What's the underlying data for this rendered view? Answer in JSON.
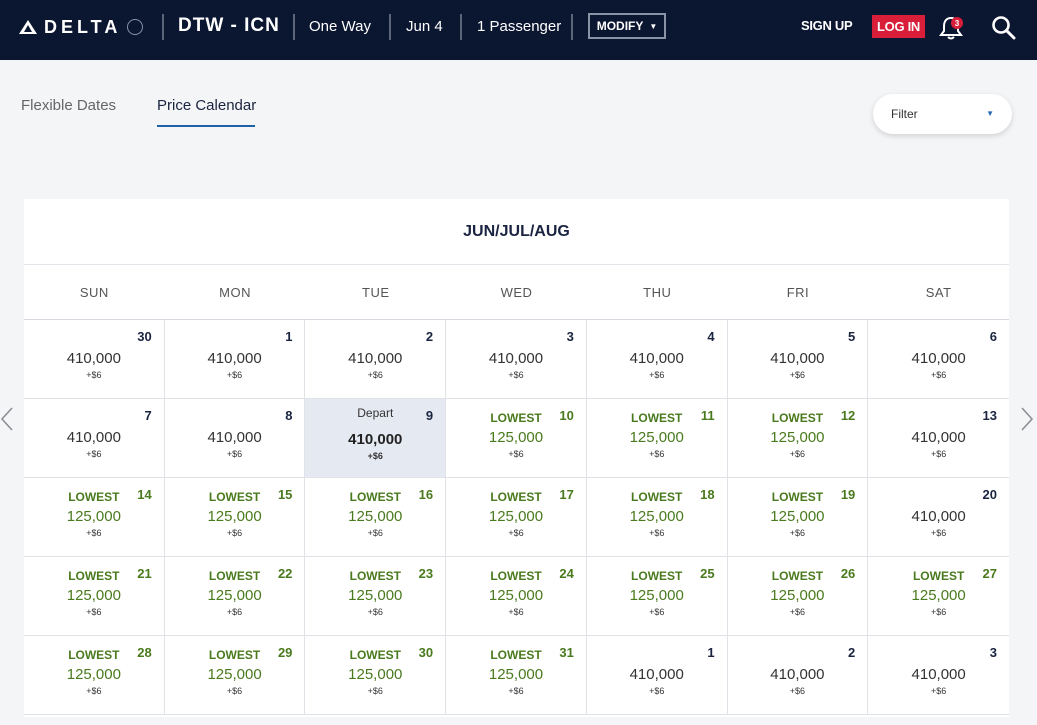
{
  "header": {
    "brand": "DELTA",
    "route": "DTW - ICN",
    "trip_type": "One Way",
    "date": "Jun 4",
    "passengers": "1 Passenger",
    "modify_label": "MODIFY",
    "signup_label": "SIGN UP",
    "login_label": "LOG IN",
    "notification_count": "3"
  },
  "tabs": {
    "flexible": "Flexible Dates",
    "price_calendar": "Price Calendar"
  },
  "filter": {
    "label": "Filter"
  },
  "calendar": {
    "title": "JUN/JUL/AUG",
    "weekdays": [
      "SUN",
      "MON",
      "TUE",
      "WED",
      "THU",
      "FRI",
      "SAT"
    ],
    "cells": [
      {
        "day": "30",
        "price": "410,000",
        "fee": "+$6",
        "tag": ""
      },
      {
        "day": "1",
        "price": "410,000",
        "fee": "+$6",
        "tag": ""
      },
      {
        "day": "2",
        "price": "410,000",
        "fee": "+$6",
        "tag": ""
      },
      {
        "day": "3",
        "price": "410,000",
        "fee": "+$6",
        "tag": ""
      },
      {
        "day": "4",
        "price": "410,000",
        "fee": "+$6",
        "tag": ""
      },
      {
        "day": "5",
        "price": "410,000",
        "fee": "+$6",
        "tag": ""
      },
      {
        "day": "6",
        "price": "410,000",
        "fee": "+$6",
        "tag": ""
      },
      {
        "day": "7",
        "price": "410,000",
        "fee": "+$6",
        "tag": ""
      },
      {
        "day": "8",
        "price": "410,000",
        "fee": "+$6",
        "tag": ""
      },
      {
        "day": "9",
        "price": "410,000",
        "fee": "+$6",
        "tag": "Depart",
        "type": "depart"
      },
      {
        "day": "10",
        "price": "125,000",
        "fee": "+$6",
        "tag": "LOWEST",
        "type": "lowest"
      },
      {
        "day": "11",
        "price": "125,000",
        "fee": "+$6",
        "tag": "LOWEST",
        "type": "lowest"
      },
      {
        "day": "12",
        "price": "125,000",
        "fee": "+$6",
        "tag": "LOWEST",
        "type": "lowest"
      },
      {
        "day": "13",
        "price": "410,000",
        "fee": "+$6",
        "tag": ""
      },
      {
        "day": "14",
        "price": "125,000",
        "fee": "+$6",
        "tag": "LOWEST",
        "type": "lowest"
      },
      {
        "day": "15",
        "price": "125,000",
        "fee": "+$6",
        "tag": "LOWEST",
        "type": "lowest"
      },
      {
        "day": "16",
        "price": "125,000",
        "fee": "+$6",
        "tag": "LOWEST",
        "type": "lowest"
      },
      {
        "day": "17",
        "price": "125,000",
        "fee": "+$6",
        "tag": "LOWEST",
        "type": "lowest"
      },
      {
        "day": "18",
        "price": "125,000",
        "fee": "+$6",
        "tag": "LOWEST",
        "type": "lowest"
      },
      {
        "day": "19",
        "price": "125,000",
        "fee": "+$6",
        "tag": "LOWEST",
        "type": "lowest"
      },
      {
        "day": "20",
        "price": "410,000",
        "fee": "+$6",
        "tag": ""
      },
      {
        "day": "21",
        "price": "125,000",
        "fee": "+$6",
        "tag": "LOWEST",
        "type": "lowest"
      },
      {
        "day": "22",
        "price": "125,000",
        "fee": "+$6",
        "tag": "LOWEST",
        "type": "lowest"
      },
      {
        "day": "23",
        "price": "125,000",
        "fee": "+$6",
        "tag": "LOWEST",
        "type": "lowest"
      },
      {
        "day": "24",
        "price": "125,000",
        "fee": "+$6",
        "tag": "LOWEST",
        "type": "lowest"
      },
      {
        "day": "25",
        "price": "125,000",
        "fee": "+$6",
        "tag": "LOWEST",
        "type": "lowest"
      },
      {
        "day": "26",
        "price": "125,000",
        "fee": "+$6",
        "tag": "LOWEST",
        "type": "lowest"
      },
      {
        "day": "27",
        "price": "125,000",
        "fee": "+$6",
        "tag": "LOWEST",
        "type": "lowest"
      },
      {
        "day": "28",
        "price": "125,000",
        "fee": "+$6",
        "tag": "LOWEST",
        "type": "lowest"
      },
      {
        "day": "29",
        "price": "125,000",
        "fee": "+$6",
        "tag": "LOWEST",
        "type": "lowest"
      },
      {
        "day": "30",
        "price": "125,000",
        "fee": "+$6",
        "tag": "LOWEST",
        "type": "lowest"
      },
      {
        "day": "31",
        "price": "125,000",
        "fee": "+$6",
        "tag": "LOWEST",
        "type": "lowest"
      },
      {
        "day": "1",
        "price": "410,000",
        "fee": "+$6",
        "tag": ""
      },
      {
        "day": "2",
        "price": "410,000",
        "fee": "+$6",
        "tag": ""
      },
      {
        "day": "3",
        "price": "410,000",
        "fee": "+$6",
        "tag": ""
      }
    ]
  },
  "icons": {
    "logo": "delta-widget-icon",
    "bell": "bell-icon",
    "search": "search-icon",
    "prev": "chevron-left-icon",
    "next": "chevron-right-icon"
  },
  "colors": {
    "header_bg": "#0b1631",
    "login_red": "#d91e3a",
    "lowest_green": "#4a7a1e",
    "depart_bg": "#e5e9f1",
    "tab_underline": "#1f62a8"
  }
}
